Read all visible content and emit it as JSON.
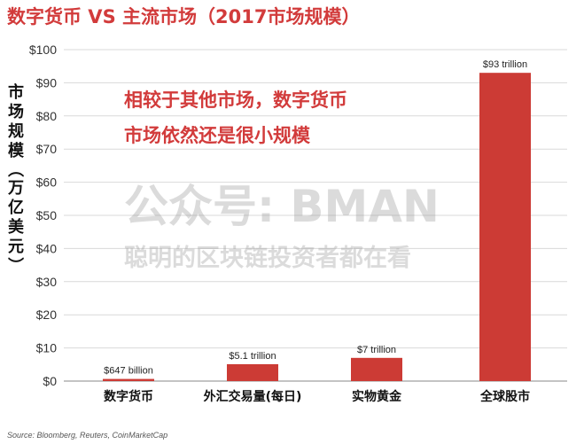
{
  "chart_data": {
    "type": "bar",
    "title": "数字货币 VS 主流市场（2017市场规模）",
    "ylabel": "市场规模（万亿美元）",
    "xlabel": "",
    "ylim": [
      0,
      100
    ],
    "yticks": [
      "$0",
      "$10",
      "$20",
      "$30",
      "$40",
      "$50",
      "$60",
      "$70",
      "$80",
      "$90",
      "$100"
    ],
    "categories": [
      "数字货币",
      "外汇交易量(每日)",
      "实物黄金",
      "全球股市"
    ],
    "values": [
      0.647,
      5.1,
      7,
      93
    ],
    "data_labels": [
      "$647 billion",
      "$5.1 trillion",
      "$7 trillion",
      "$93 trillion"
    ],
    "annotation": [
      "相较于其他市场，数字货币",
      "市场依然还是很小规模"
    ],
    "grid": true
  },
  "colors": {
    "title": "#d23b3b",
    "bar": "#cc3b35",
    "annotation": "#d23b3b"
  },
  "watermark": {
    "line1": "公众号: BMAN",
    "line2": "聪明的区块链投资者都在看"
  },
  "source": "Source: Bloomberg, Reuters, CoinMarketCap"
}
